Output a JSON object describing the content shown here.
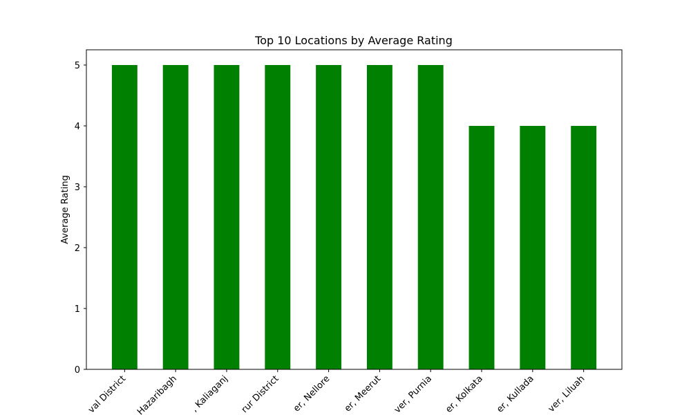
{
  "chart_data": {
    "type": "bar",
    "title": "Top 10 Locations by Average Rating",
    "xlabel": "",
    "ylabel": "Average Rating",
    "categories": [
      "val District",
      "Hazaribagh",
      ", Kaliaganj",
      "rur District",
      "er, Nellore",
      "er, Meerut",
      "ver, Purnia",
      "er, Kolkata",
      "er, Kullada",
      "ver, Liluah"
    ],
    "values": [
      5,
      5,
      5,
      5,
      5,
      5,
      5,
      4,
      4,
      4
    ],
    "ylim": [
      0,
      5.25
    ],
    "yticks": [
      0,
      1,
      2,
      3,
      4,
      5
    ],
    "grid": false,
    "colors": {
      "bar": "#008000",
      "axis": "#000000",
      "background": "#ffffff"
    }
  }
}
